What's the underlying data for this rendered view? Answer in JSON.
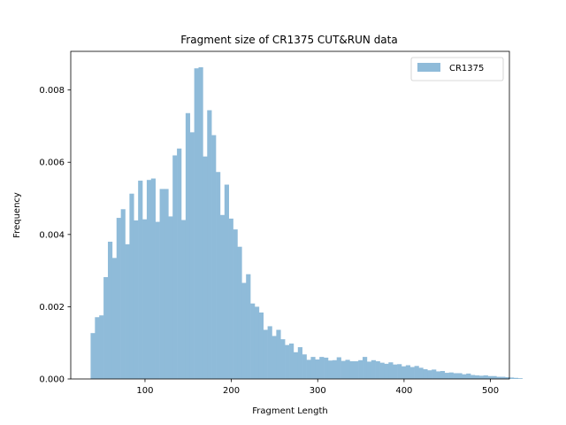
{
  "chart_data": {
    "type": "bar",
    "title": "Fragment size of CR1375 CUT&RUN data",
    "xlabel": "Fragment Length",
    "ylabel": "Frequency",
    "xlim": [
      14,
      522
    ],
    "ylim": [
      0,
      0.00907
    ],
    "xticks": [
      100,
      200,
      300,
      400,
      500
    ],
    "yticks": [
      0.0,
      0.002,
      0.004,
      0.006,
      0.008
    ],
    "ytick_labels": [
      "0.000",
      "0.002",
      "0.004",
      "0.006",
      "0.008"
    ],
    "bin_start": 37,
    "bin_width": 5,
    "legend_position": "upper right",
    "color": "#8fbbd9",
    "series": [
      {
        "name": "CR1375",
        "values": [
          0.00127,
          0.00171,
          0.00176,
          0.00282,
          0.0038,
          0.00335,
          0.00446,
          0.0047,
          0.00373,
          0.00513,
          0.00439,
          0.00549,
          0.00442,
          0.00551,
          0.00555,
          0.00435,
          0.00526,
          0.00526,
          0.0045,
          0.00619,
          0.00638,
          0.0044,
          0.00736,
          0.00683,
          0.0086,
          0.00863,
          0.00616,
          0.00744,
          0.00675,
          0.00573,
          0.00454,
          0.00538,
          0.00444,
          0.00414,
          0.00366,
          0.00266,
          0.0029,
          0.00209,
          0.002,
          0.00184,
          0.00136,
          0.00146,
          0.00119,
          0.00136,
          0.0011,
          0.00094,
          0.00098,
          0.00074,
          0.00088,
          0.00068,
          0.00053,
          0.00061,
          0.00054,
          0.00061,
          0.00059,
          0.00051,
          0.00052,
          0.0006,
          0.0005,
          0.00053,
          0.00049,
          0.00049,
          0.00052,
          0.00061,
          0.00048,
          0.00052,
          0.00049,
          0.00045,
          0.00042,
          0.00046,
          0.0004,
          0.00041,
          0.00035,
          0.00038,
          0.00033,
          0.00036,
          0.00031,
          0.00027,
          0.00024,
          0.00026,
          0.00021,
          0.00022,
          0.00017,
          0.00018,
          0.00016,
          0.00016,
          0.00013,
          0.00015,
          0.00011,
          0.0001,
          9e-05,
          0.0001,
          8e-05,
          8e-05,
          6e-05,
          6e-05,
          5e-05,
          4e-05,
          3e-05,
          2e-05
        ]
      }
    ]
  }
}
